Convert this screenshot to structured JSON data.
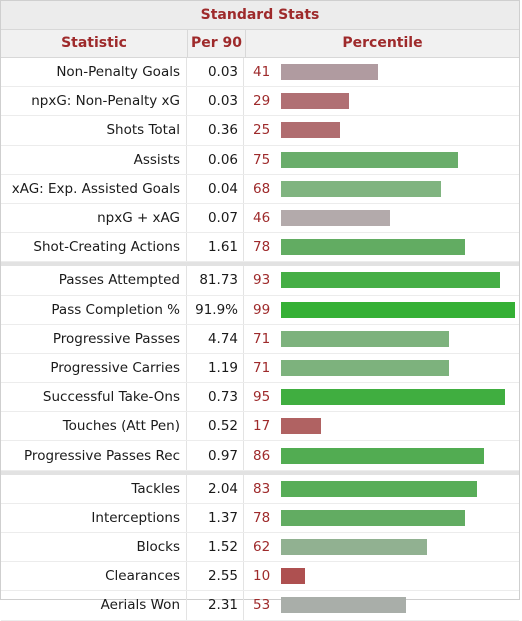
{
  "title": "Standard Stats",
  "headers": {
    "statistic": "Statistic",
    "per90": "Per 90",
    "percentile": "Percentile"
  },
  "groups": [
    [
      {
        "stat": "Non-Penalty Goals",
        "per90": "0.03",
        "percentile": 41,
        "color": "#b09ba0"
      },
      {
        "stat": "npxG: Non-Penalty xG",
        "per90": "0.03",
        "percentile": 29,
        "color": "#b07074"
      },
      {
        "stat": "Shots Total",
        "per90": "0.36",
        "percentile": 25,
        "color": "#b06d70"
      },
      {
        "stat": "Assists",
        "per90": "0.06",
        "percentile": 75,
        "color": "#6aad6b"
      },
      {
        "stat": "xAG: Exp. Assisted Goals",
        "per90": "0.04",
        "percentile": 68,
        "color": "#80b480"
      },
      {
        "stat": "npxG + xAG",
        "per90": "0.07",
        "percentile": 46,
        "color": "#b3aaab"
      },
      {
        "stat": "Shot-Creating Actions",
        "per90": "1.61",
        "percentile": 78,
        "color": "#62ac62"
      }
    ],
    [
      {
        "stat": "Passes Attempted",
        "per90": "81.73",
        "percentile": 93,
        "color": "#45ae45"
      },
      {
        "stat": "Pass Completion %",
        "per90": "91.9%",
        "percentile": 99,
        "color": "#35b035"
      },
      {
        "stat": "Progressive Passes",
        "per90": "4.74",
        "percentile": 71,
        "color": "#7db27d"
      },
      {
        "stat": "Progressive Carries",
        "per90": "1.19",
        "percentile": 71,
        "color": "#7db27d"
      },
      {
        "stat": "Successful Take-Ons",
        "per90": "0.73",
        "percentile": 95,
        "color": "#40ae40"
      },
      {
        "stat": "Touches (Att Pen)",
        "per90": "0.52",
        "percentile": 17,
        "color": "#b06262"
      },
      {
        "stat": "Progressive Passes Rec",
        "per90": "0.97",
        "percentile": 86,
        "color": "#52ac52"
      }
    ],
    [
      {
        "stat": "Tackles",
        "per90": "2.04",
        "percentile": 83,
        "color": "#58ad58"
      },
      {
        "stat": "Interceptions",
        "per90": "1.37",
        "percentile": 78,
        "color": "#62ac62"
      },
      {
        "stat": "Blocks",
        "per90": "1.52",
        "percentile": 62,
        "color": "#91b191"
      },
      {
        "stat": "Clearances",
        "per90": "2.55",
        "percentile": 10,
        "color": "#ae5050"
      },
      {
        "stat": "Aerials Won",
        "per90": "2.31",
        "percentile": 53,
        "color": "#a9aea9"
      }
    ]
  ]
}
